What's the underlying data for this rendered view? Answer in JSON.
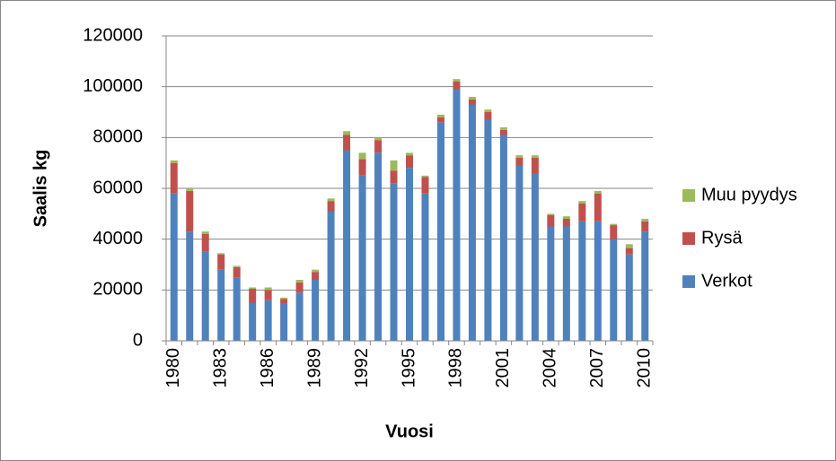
{
  "chart_data": {
    "type": "bar",
    "stacked": true,
    "x_label": "Vuosi",
    "y_label": "Saalis kg",
    "categories": [
      "1980",
      null,
      null,
      "1983",
      null,
      null,
      "1986",
      null,
      null,
      "1989",
      null,
      null,
      "1992",
      null,
      null,
      "1995",
      null,
      null,
      "1998",
      null,
      null,
      "2001",
      null,
      null,
      "2004",
      null,
      null,
      "2007",
      null,
      null,
      "2010"
    ],
    "series": [
      {
        "name": "Verkot",
        "color": "#4f81bd",
        "values": [
          58000,
          43000,
          35000,
          28000,
          25000,
          15000,
          16000,
          14500,
          19000,
          24000,
          51000,
          75000,
          65000,
          74000,
          62000,
          68000,
          58000,
          86000,
          99000,
          93000,
          87000,
          81000,
          69000,
          66000,
          45000,
          45000,
          47000,
          47000,
          40000,
          34000,
          43000
        ]
      },
      {
        "name": "Rysä",
        "color": "#c0504d",
        "values": [
          12000,
          16000,
          7000,
          6000,
          4000,
          5500,
          4000,
          2000,
          4000,
          3000,
          4000,
          6000,
          6500,
          5000,
          5000,
          5000,
          6500,
          2000,
          3000,
          2000,
          3000,
          2000,
          3000,
          6000,
          4500,
          3000,
          7000,
          11000,
          5500,
          2500,
          4000
        ]
      },
      {
        "name": "Muu pyydys",
        "color": "#9bbb59",
        "values": [
          1000,
          1000,
          1000,
          500,
          500,
          500,
          1000,
          500,
          1000,
          1000,
          1000,
          1500,
          2500,
          1000,
          4000,
          1000,
          500,
          1000,
          1000,
          1000,
          1000,
          1000,
          1000,
          1000,
          500,
          1000,
          1000,
          1000,
          500,
          1500,
          1000
        ]
      }
    ],
    "ylim": [
      0,
      120000
    ],
    "yticks": [
      0,
      20000,
      40000,
      60000,
      80000,
      100000,
      120000
    ],
    "grid": true,
    "legend": "right"
  }
}
